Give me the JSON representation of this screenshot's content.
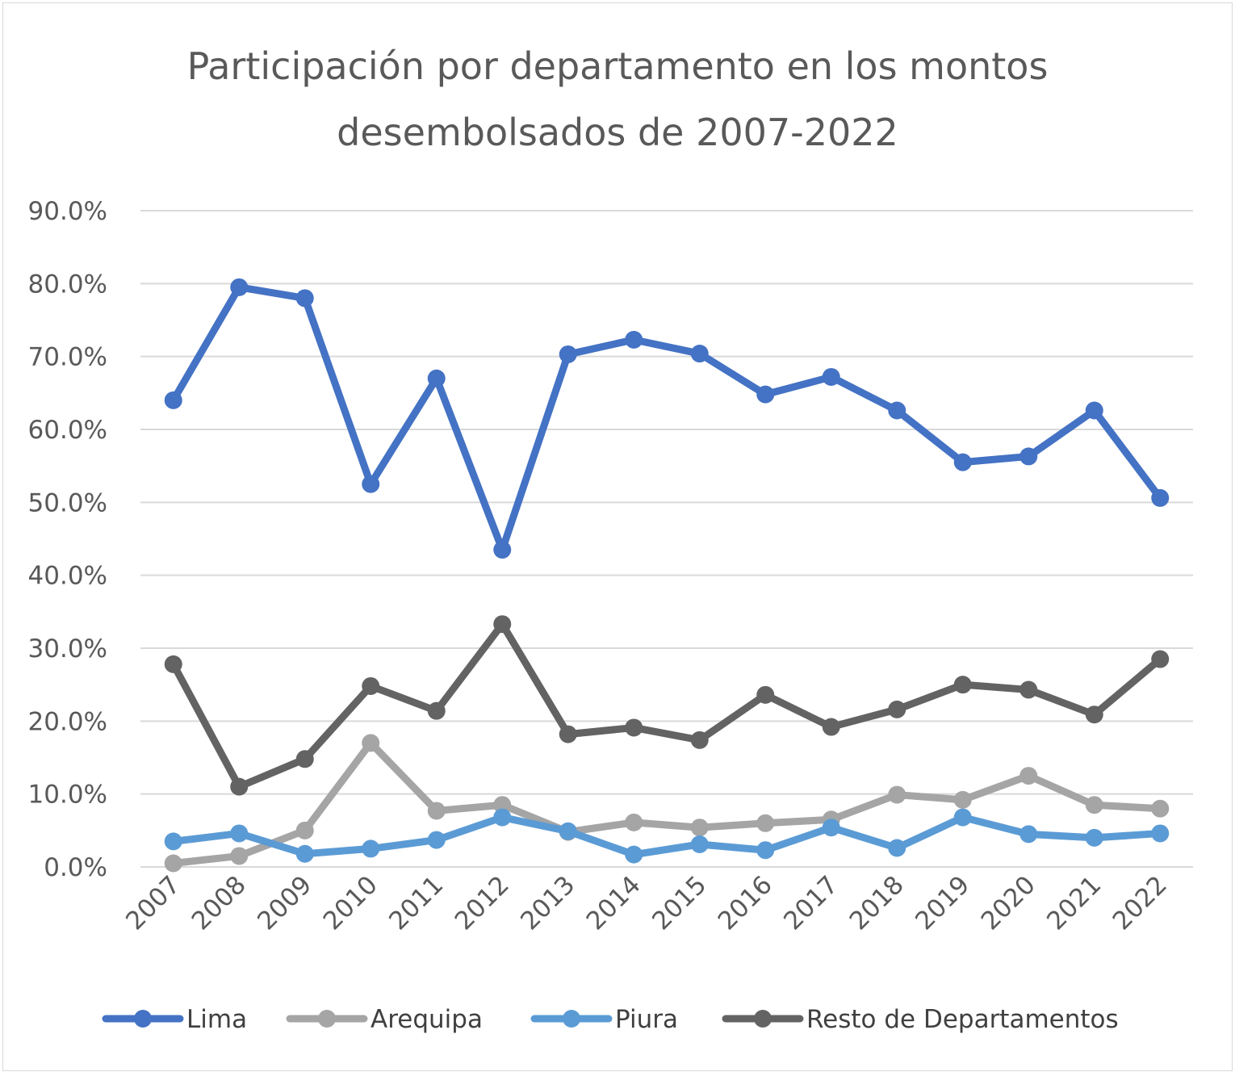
{
  "chart_data": {
    "type": "line",
    "title": "Participación por departamento en los montos desembolsados de 2007-2022",
    "title_lines": [
      "Participación por departamento en los montos",
      "desembolsados de 2007-2022"
    ],
    "xlabel": "",
    "ylabel": "",
    "categories": [
      "2007",
      "2008",
      "2009",
      "2010",
      "2011",
      "2012",
      "2013",
      "2014",
      "2015",
      "2016",
      "2017",
      "2018",
      "2019",
      "2020",
      "2021",
      "2022"
    ],
    "ylim": [
      0,
      90
    ],
    "yticks": [
      0,
      10,
      20,
      30,
      40,
      50,
      60,
      70,
      80,
      90
    ],
    "ytick_labels": [
      "0.0%",
      "10.0%",
      "20.0%",
      "30.0%",
      "40.0%",
      "50.0%",
      "60.0%",
      "70.0%",
      "80.0%",
      "90.0%"
    ],
    "grid": true,
    "legend_position": "bottom",
    "series": [
      {
        "name": "Lima",
        "color": "#4472c4",
        "values": [
          64.0,
          79.5,
          78.0,
          52.5,
          67.0,
          43.5,
          70.3,
          72.3,
          70.4,
          64.8,
          67.2,
          62.6,
          55.5,
          56.3,
          62.6,
          50.6
        ]
      },
      {
        "name": "Arequipa",
        "color": "#a5a5a5",
        "values": [
          0.5,
          1.5,
          5.0,
          17.0,
          7.7,
          8.5,
          4.8,
          6.1,
          5.4,
          6.0,
          6.5,
          9.9,
          9.2,
          12.5,
          8.5,
          8.0
        ]
      },
      {
        "name": "Piura",
        "color": "#5b9bd5",
        "values": [
          3.5,
          4.6,
          1.8,
          2.5,
          3.7,
          6.8,
          4.9,
          1.7,
          3.1,
          2.3,
          5.4,
          2.6,
          6.8,
          4.5,
          4.0,
          4.6
        ]
      },
      {
        "name": "Resto de Departamentos",
        "color": "#636363",
        "values": [
          27.8,
          11.0,
          14.8,
          24.8,
          21.4,
          33.3,
          18.2,
          19.1,
          17.4,
          23.6,
          19.2,
          21.6,
          25.0,
          24.3,
          20.9,
          28.5
        ]
      }
    ]
  }
}
